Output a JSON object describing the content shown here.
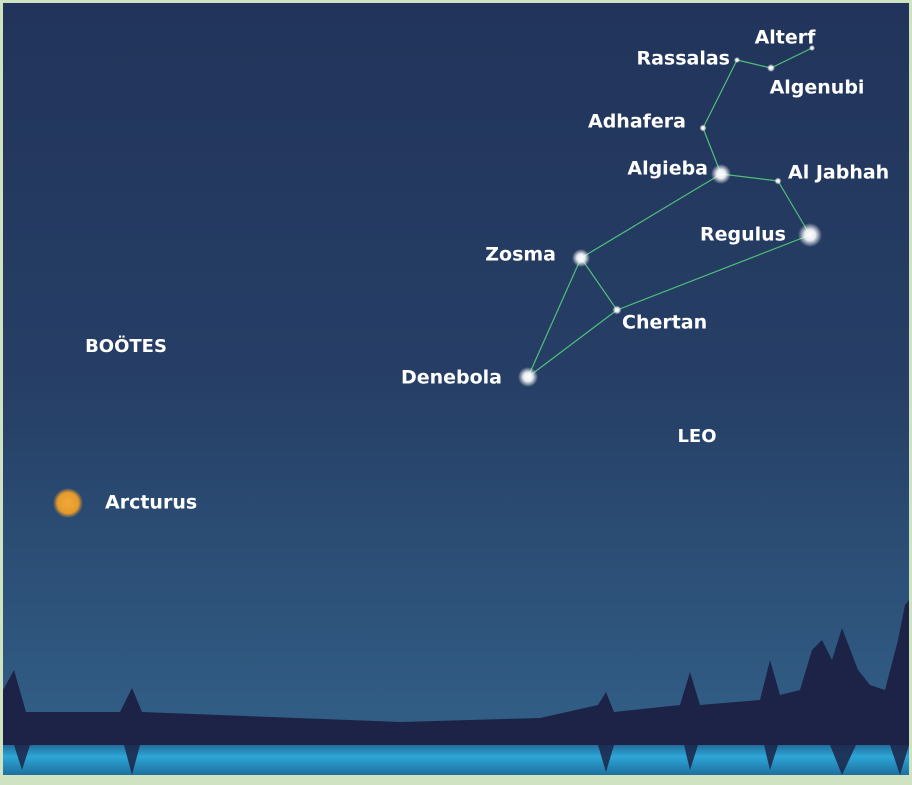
{
  "stars": [
    {
      "label": "Alterf"
    },
    {
      "label": "Rassalas"
    },
    {
      "label": "Algenubi"
    },
    {
      "label": "Adhafera"
    },
    {
      "label": "Algieba"
    },
    {
      "label": "Al Jabhah"
    },
    {
      "label": "Regulus"
    },
    {
      "label": "Zosma"
    },
    {
      "label": "Chertan"
    },
    {
      "label": "Denebola"
    },
    {
      "label": "Arcturus"
    }
  ],
  "constellations": [
    "BOÖTES",
    "LEO"
  ]
}
